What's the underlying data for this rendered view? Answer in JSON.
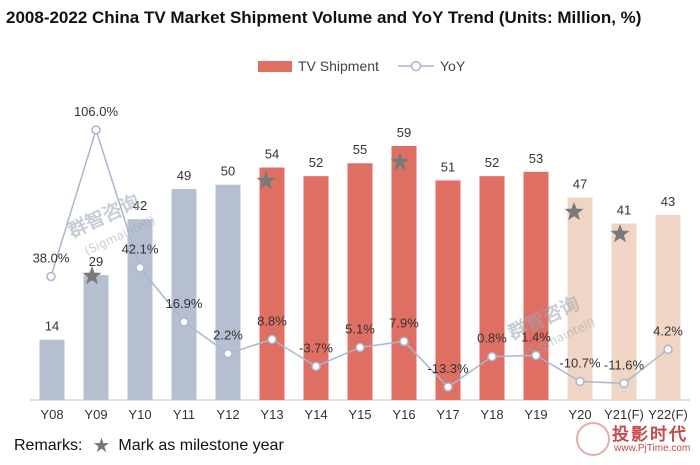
{
  "title": "2008-2022 China TV Market Shipment Volume and YoY Trend (Units: Million, %)",
  "legend": {
    "bar_label": "TV Shipment",
    "line_label": "YoY"
  },
  "remarks": {
    "prefix": "Remarks:",
    "text": "Mark as milestone year"
  },
  "watermark": {
    "brand": "投影时代",
    "url": "www.PjTime.com",
    "overlay": "群智咨询",
    "overlay_sub": "(Sigmaintell)"
  },
  "colors": {
    "grey": "#b6bfd0",
    "red": "#e06f63",
    "peach": "#f0d5c5",
    "line": "#a8b7cf",
    "star": "#7a7a7a"
  },
  "chart_data": {
    "type": "bar",
    "title": "2008-2022 China TV Market Shipment Volume and YoY Trend (Units: Million, %)",
    "categories": [
      "Y08",
      "Y09",
      "Y10",
      "Y11",
      "Y12",
      "Y13",
      "Y14",
      "Y15",
      "Y16",
      "Y17",
      "Y18",
      "Y19",
      "Y20",
      "Y21(F)",
      "Y22(F)"
    ],
    "series": [
      {
        "name": "TV Shipment",
        "type": "bar",
        "values": [
          14,
          29,
          42,
          49,
          50,
          54,
          52,
          55,
          59,
          51,
          52,
          53,
          47,
          41,
          43
        ],
        "labels": [
          "14",
          "29",
          "42",
          "49",
          "50",
          "54",
          "52",
          "55",
          "59",
          "51",
          "52",
          "53",
          "47",
          "41",
          "43"
        ],
        "color_groups": [
          "grey",
          "grey",
          "grey",
          "grey",
          "grey",
          "red",
          "red",
          "red",
          "red",
          "red",
          "red",
          "red",
          "peach",
          "peach",
          "peach"
        ]
      },
      {
        "name": "YoY",
        "type": "line",
        "values": [
          38.0,
          106.0,
          42.1,
          16.9,
          2.2,
          8.8,
          -3.7,
          5.1,
          7.9,
          -13.3,
          0.8,
          1.4,
          -10.7,
          -11.6,
          4.2
        ],
        "labels": [
          "38.0%",
          "106.0%",
          "42.1%",
          "16.9%",
          "2.2%",
          "8.8%",
          "-3.7%",
          "5.1%",
          "7.9%",
          "-13.3%",
          "0.8%",
          "1.4%",
          "-10.7%",
          "-11.6%",
          "4.2%"
        ]
      }
    ],
    "milestones": [
      "Y09",
      "Y13",
      "Y16",
      "Y20",
      "Y21(F)"
    ],
    "bar_axis": {
      "min": 0,
      "max": 62
    },
    "line_axis": {
      "min": -20,
      "max": 120
    },
    "legend_position": "top-center",
    "grid": false
  }
}
